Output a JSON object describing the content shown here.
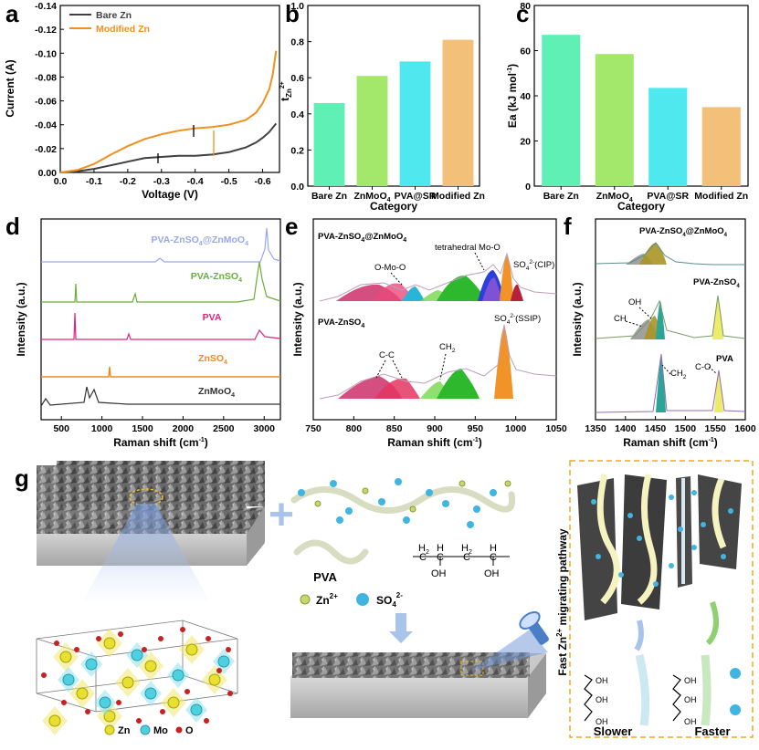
{
  "panels": {
    "a": {
      "label": "a"
    },
    "b": {
      "label": "b"
    },
    "c": {
      "label": "c"
    },
    "d": {
      "label": "d"
    },
    "e": {
      "label": "e"
    },
    "f": {
      "label": "f"
    },
    "g": {
      "label": "g"
    }
  },
  "chart_data": [
    {
      "id": "a",
      "type": "line",
      "xlabel": "Voltage (V)",
      "ylabel": "Current (A)",
      "xlim": [
        0.0,
        -0.65
      ],
      "ylim": [
        0.0,
        -0.14
      ],
      "xticks": [
        "0.0",
        "-0.1",
        "-0.2",
        "-0.3",
        "-0.4",
        "-0.5",
        "-0.6"
      ],
      "yticks": [
        "0.00",
        "-0.02",
        "-0.04",
        "-0.06",
        "-0.08",
        "-0.10",
        "-0.12",
        "-0.14"
      ],
      "legend_position": "top-left",
      "series": [
        {
          "name": "Bare Zn",
          "color": "#404040",
          "x": [
            0.0,
            -0.05,
            -0.1,
            -0.15,
            -0.2,
            -0.25,
            -0.3,
            -0.35,
            -0.4,
            -0.45,
            -0.5,
            -0.55,
            -0.58,
            -0.6,
            -0.62,
            -0.64
          ],
          "y": [
            0.0,
            -0.001,
            -0.003,
            -0.006,
            -0.009,
            -0.012,
            -0.013,
            -0.014,
            -0.014,
            -0.015,
            -0.017,
            -0.021,
            -0.025,
            -0.029,
            -0.034,
            -0.041
          ]
        },
        {
          "name": "Modified Zn",
          "color": "#f0901e",
          "x": [
            0.0,
            -0.05,
            -0.1,
            -0.15,
            -0.2,
            -0.25,
            -0.3,
            -0.35,
            -0.4,
            -0.45,
            -0.5,
            -0.55,
            -0.58,
            -0.6,
            -0.62,
            -0.63,
            -0.64
          ],
          "y": [
            0.0,
            -0.002,
            -0.007,
            -0.015,
            -0.022,
            -0.028,
            -0.032,
            -0.035,
            -0.037,
            -0.038,
            -0.04,
            -0.044,
            -0.05,
            -0.058,
            -0.07,
            -0.082,
            -0.102
          ]
        }
      ]
    },
    {
      "id": "b",
      "type": "bar",
      "xlabel": "Category",
      "ylabel": "t",
      "ylabel_sub": "Zn",
      "ylabel_sup": "2+",
      "ylim": [
        0.0,
        1.0
      ],
      "yticks": [
        "0.0",
        "0.2",
        "0.4",
        "0.6",
        "0.8",
        "1.0"
      ],
      "categories": [
        "Bare Zn",
        "ZnMoO",
        "PVA@SR",
        "Modified Zn"
      ],
      "category_sub": [
        "",
        "4",
        "",
        ""
      ],
      "values": [
        0.46,
        0.61,
        0.69,
        0.81
      ],
      "colors": [
        "#5ff0b5",
        "#a3e86a",
        "#4fe8ee",
        "#f2c078"
      ]
    },
    {
      "id": "c",
      "type": "bar",
      "xlabel": "Category",
      "ylabel": "Ea (kJ mol",
      "ylabel_sup": "-1",
      "ylabel_end": ")",
      "ylim": [
        0,
        80
      ],
      "yticks": [
        "0",
        "20",
        "40",
        "60",
        "80"
      ],
      "categories": [
        "Bare Zn",
        "ZnMoO",
        "PVA@SR",
        "Modified Zn"
      ],
      "category_sub": [
        "",
        "4",
        "",
        ""
      ],
      "values": [
        67,
        58.5,
        43.5,
        35
      ],
      "colors": [
        "#5ff0b5",
        "#a3e86a",
        "#4fe8ee",
        "#f2c078"
      ]
    },
    {
      "id": "d",
      "type": "line",
      "xlabel": "Raman shift (cm",
      "xlabel_sup": "-1",
      "xlabel_end": ")",
      "ylabel": "Intensity (a.u.)",
      "xlim": [
        250,
        3200
      ],
      "xticks": [
        "500",
        "1000",
        "1500",
        "2000",
        "2500",
        "3000"
      ],
      "series": [
        {
          "name": "PVA-ZnSO",
          "sub": "4",
          "suffix": "@ZnMoO",
          "sub2": "4",
          "color": "#99a6ee"
        },
        {
          "name": "PVA-ZnSO",
          "sub": "4",
          "suffix": "",
          "sub2": "",
          "color": "#6aae3a"
        },
        {
          "name": "PVA",
          "sub": "",
          "suffix": "",
          "sub2": "",
          "color": "#e0247e"
        },
        {
          "name": "ZnSO",
          "sub": "4",
          "suffix": "",
          "sub2": "",
          "color": "#f08a20"
        },
        {
          "name": "ZnMoO",
          "sub": "4",
          "suffix": "",
          "sub2": "",
          "color": "#333333"
        }
      ]
    },
    {
      "id": "e",
      "type": "area",
      "xlabel": "Raman shift (cm",
      "xlabel_sup": "-1",
      "xlabel_end": ")",
      "ylabel": "Intensity (a.u.)",
      "xlim": [
        750,
        1050
      ],
      "xticks": [
        "750",
        "800",
        "850",
        "900",
        "950",
        "1000",
        "1050"
      ],
      "top_title": {
        "a": "PVA-ZnSO",
        "s": "4",
        "b": "@ZnMoO",
        "s2": "4"
      },
      "bottom_title": {
        "a": "PVA-ZnSO",
        "s": "4"
      },
      "annotations": {
        "omoo": "O-Mo-O",
        "tetra": "tetrahedral Mo-O",
        "cip_a": "SO",
        "cip_sub": "4",
        "cip_sup": "2-",
        "cip_b": "(CIP)",
        "ssip_a": "SO",
        "ssip_sub": "4",
        "ssip_sup": "2-",
        "ssip_b": "(SSIP)",
        "cc": "C-C",
        "ch2_a": "CH",
        "ch2_sub": "2"
      }
    },
    {
      "id": "f",
      "type": "area",
      "xlabel": "Raman shift (cm",
      "xlabel_sup": "-1",
      "xlabel_end": ")",
      "ylabel": "Intensity (a.u.)",
      "xlim": [
        1350,
        1600
      ],
      "xticks": [
        "1350",
        "1400",
        "1450",
        "1500",
        "1550",
        "1600"
      ],
      "labels": {
        "top_a": "PVA-ZnSO",
        "top_s": "4",
        "top_b": "@ZnMoO",
        "top_s2": "4",
        "mid_a": "PVA-ZnSO",
        "mid_s": "4",
        "bot": "PVA",
        "oh": "OH",
        "ch": "CH",
        "ch2_a": "CH",
        "ch2_s": "2",
        "co": "C-O"
      }
    }
  ],
  "schematic": {
    "plus": "+",
    "pva_label": "PVA",
    "chem": {
      "h2a": "H",
      "h2a_s": "2",
      "c1": "C",
      "h1": "H",
      "c2": "C",
      "h2b": "H",
      "h2b_s": "2",
      "c3": "C",
      "h3": "H",
      "c4": "C",
      "oh1": "OH",
      "oh2": "OH"
    },
    "zn_ion": {
      "a": "Zn",
      "sup": "2+"
    },
    "so4_ion": {
      "a": "SO",
      "sub": "4",
      "sup": "2-"
    },
    "legend": {
      "zn": "Zn",
      "mo": "Mo",
      "o": "O"
    },
    "pathway": {
      "a": "Fast Zn",
      "sup": "2+",
      "b": " migrating pathway"
    },
    "slower": "Slower",
    "faster": "Faster",
    "oh": "OH",
    "zn_small": "Zn",
    "zn_small_sup": "2+"
  }
}
